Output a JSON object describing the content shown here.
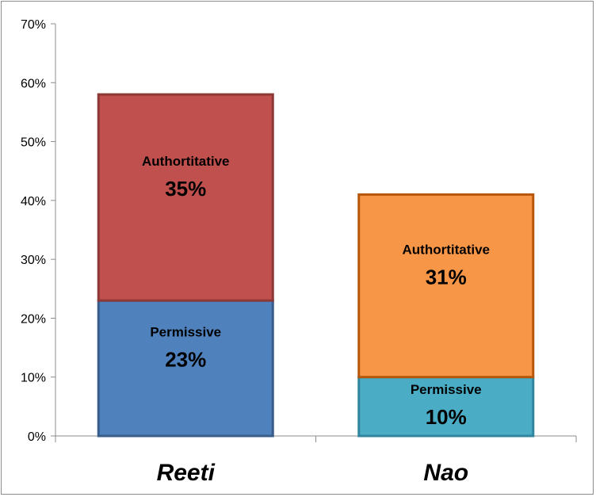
{
  "chart_data": {
    "type": "bar",
    "stacked": true,
    "categories": [
      "Reeti",
      "Nao"
    ],
    "ylim": [
      0,
      70
    ],
    "yticks": [
      "0%",
      "10%",
      "20%",
      "30%",
      "40%",
      "50%",
      "60%",
      "70%"
    ],
    "ytick_values": [
      0,
      10,
      20,
      30,
      40,
      50,
      60,
      70
    ],
    "grid": false,
    "legend": "none",
    "stacks": [
      {
        "category": "Reeti",
        "segments": [
          {
            "name": "Permissive",
            "value": 23,
            "label": "23%",
            "fill": "#4f81bd",
            "stroke": "#385d8a"
          },
          {
            "name": "Authortitative",
            "value": 35,
            "label": "35%",
            "fill": "#c0504d",
            "stroke": "#8c3836"
          }
        ]
      },
      {
        "category": "Nao",
        "segments": [
          {
            "name": "Permissive",
            "value": 10,
            "label": "10%",
            "fill": "#4bacc6",
            "stroke": "#31859c"
          },
          {
            "name": "Authortitative",
            "value": 31,
            "label": "31%",
            "fill": "#f79646",
            "stroke": "#b65708"
          }
        ]
      }
    ]
  }
}
